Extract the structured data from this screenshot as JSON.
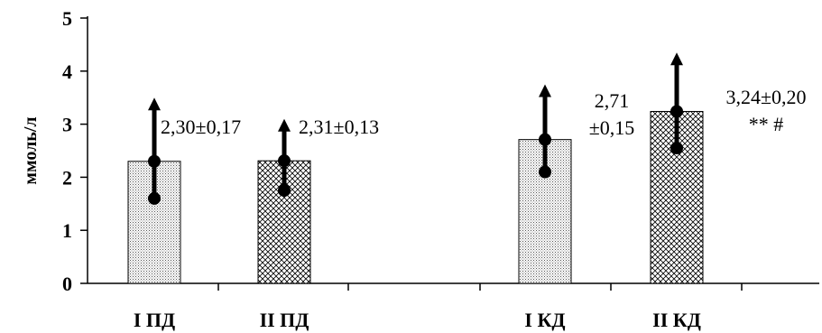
{
  "chart_data": {
    "type": "bar",
    "ylabel": "ммоль/л",
    "ylim": [
      0,
      5
    ],
    "yticks": [
      0,
      1,
      2,
      3,
      4,
      5
    ],
    "grid": false,
    "categories": [
      "I ПД",
      "II ПД",
      "I КД",
      "II КД"
    ],
    "values": [
      2.3,
      2.31,
      2.71,
      3.24
    ],
    "error_low": [
      1.6,
      1.75,
      2.1,
      2.55
    ],
    "error_high": [
      3.5,
      3.1,
      3.75,
      4.35
    ],
    "bar_patterns": [
      "dots",
      "crosshatch",
      "dots",
      "crosshatch"
    ],
    "data_labels": [
      [
        "2,30±0,17"
      ],
      [
        "2,31±0,13"
      ],
      [
        "2,71",
        "±0,15"
      ],
      [
        "3,24±0,20",
        "** #"
      ]
    ]
  }
}
